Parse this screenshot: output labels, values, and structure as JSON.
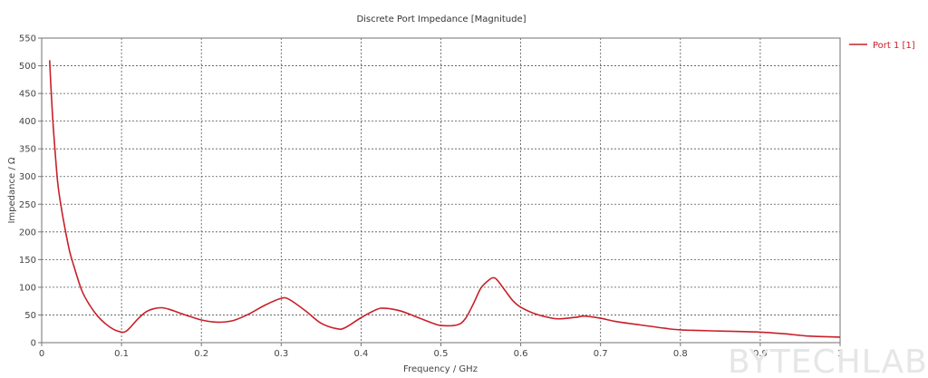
{
  "chart_data": {
    "type": "line",
    "title": "Discrete Port Impedance [Magnitude]",
    "xlabel": "Frequency / GHz",
    "ylabel": "Impedance / Ω",
    "xlim": [
      0,
      1
    ],
    "ylim": [
      0,
      550
    ],
    "x_ticks": [
      "0",
      "0.1",
      "0.2",
      "0.3",
      "0.4",
      "0.5",
      "0.6",
      "0.7",
      "0.8",
      "0.9",
      "1"
    ],
    "y_ticks": [
      "0",
      "50",
      "100",
      "150",
      "200",
      "250",
      "300",
      "350",
      "400",
      "450",
      "500",
      "550"
    ],
    "grid": true,
    "legend_position": "right",
    "series": [
      {
        "name": "Port 1 [1]",
        "color": "#c8202a",
        "x": [
          0.01,
          0.012,
          0.015,
          0.02,
          0.025,
          0.03,
          0.035,
          0.04,
          0.05,
          0.06,
          0.07,
          0.08,
          0.09,
          0.1,
          0.105,
          0.11,
          0.12,
          0.13,
          0.14,
          0.15,
          0.16,
          0.18,
          0.2,
          0.22,
          0.24,
          0.26,
          0.28,
          0.3,
          0.31,
          0.33,
          0.35,
          0.37,
          0.38,
          0.4,
          0.42,
          0.43,
          0.45,
          0.47,
          0.49,
          0.5,
          0.52,
          0.53,
          0.54,
          0.55,
          0.56,
          0.565,
          0.57,
          0.58,
          0.59,
          0.6,
          0.62,
          0.64,
          0.65,
          0.67,
          0.68,
          0.7,
          0.72,
          0.75,
          0.78,
          0.8,
          0.85,
          0.9,
          0.93,
          0.96,
          1.0
        ],
        "values": [
          510,
          450,
          380,
          290,
          240,
          200,
          165,
          140,
          95,
          68,
          48,
          34,
          24,
          19,
          20,
          26,
          42,
          55,
          61,
          63,
          60,
          50,
          41,
          37,
          40,
          52,
          68,
          80,
          78,
          58,
          35,
          25,
          27,
          45,
          60,
          62,
          57,
          46,
          35,
          31,
          32,
          42,
          68,
          98,
          113,
          117,
          114,
          95,
          76,
          64,
          51,
          44,
          43,
          46,
          48,
          44,
          38,
          32,
          26,
          23,
          21,
          19,
          16,
          12,
          10
        ]
      }
    ],
    "watermark": "BYTECHLAB"
  }
}
